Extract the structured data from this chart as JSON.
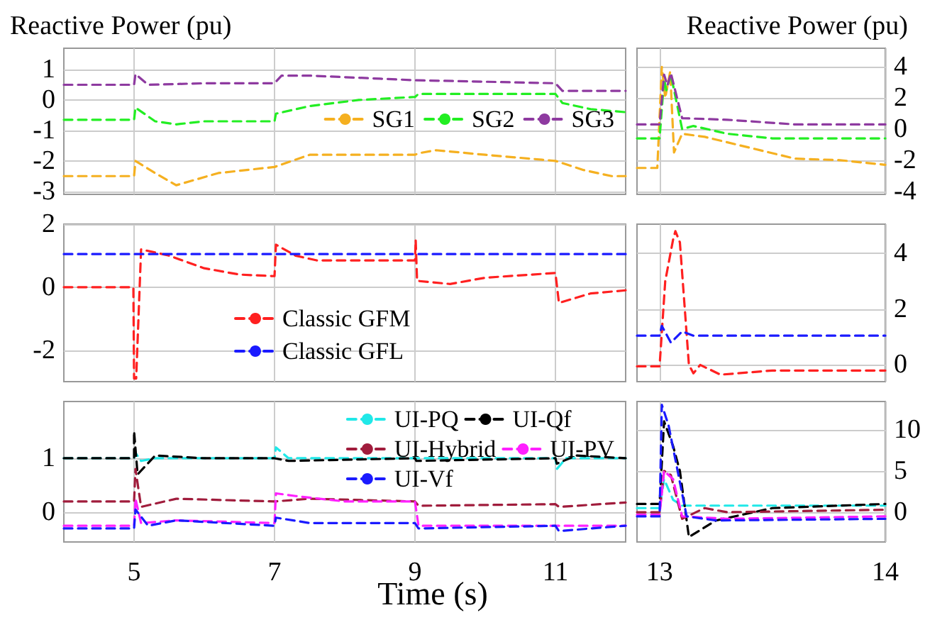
{
  "chart_data": [
    {
      "type": "line",
      "ylabel": "Reactive Power (pu)",
      "xlim": [
        4,
        12
      ],
      "xticks": [
        5,
        7,
        9,
        11
      ],
      "ylim": [
        -3.1,
        1.7
      ],
      "yticks": [
        -3,
        -2,
        -1,
        0,
        1
      ],
      "grid": true,
      "legend": "right",
      "line_style": "dashed",
      "marker": "none",
      "tick_labels": "y",
      "series": [
        {
          "name": "SG1",
          "color": "#f5b020",
          "x": [
            4,
            5,
            5.02,
            5.3,
            5.6,
            6.2,
            7,
            7.5,
            9,
            9.05,
            9.3,
            10,
            11,
            11.4,
            11.8,
            12
          ],
          "values": [
            -2.5,
            -2.5,
            -2.0,
            -2.4,
            -2.8,
            -2.4,
            -2.2,
            -1.8,
            -1.8,
            -1.75,
            -1.65,
            -1.8,
            -2.0,
            -2.3,
            -2.5,
            -2.5
          ]
        },
        {
          "name": "SG2",
          "color": "#22ee22",
          "x": [
            4,
            5,
            5.02,
            5.3,
            5.6,
            6,
            7,
            7.02,
            7.5,
            8.2,
            9,
            9.05,
            10,
            11,
            11.1,
            11.5,
            12
          ],
          "values": [
            -0.65,
            -0.65,
            -0.25,
            -0.7,
            -0.8,
            -0.7,
            -0.7,
            -0.45,
            -0.2,
            0,
            0.1,
            0.2,
            0.2,
            0.2,
            -0.1,
            -0.3,
            -0.4
          ]
        },
        {
          "name": "SG3",
          "color": "#8e3aa0",
          "x": [
            4,
            5,
            5.02,
            5.2,
            6,
            7,
            7.1,
            7.5,
            8.5,
            9,
            10,
            11,
            11.1,
            12
          ],
          "values": [
            0.5,
            0.5,
            0.85,
            0.5,
            0.55,
            0.55,
            0.8,
            0.8,
            0.7,
            0.65,
            0.6,
            0.55,
            0.3,
            0.3
          ]
        }
      ]
    },
    {
      "type": "line",
      "ylabel": "Reactive Power (pu)",
      "xlim": [
        12.9,
        14
      ],
      "xticks": [
        13,
        14
      ],
      "ylim": [
        -4.2,
        5.2
      ],
      "yticks": [
        -4,
        -2,
        0,
        2,
        4
      ],
      "grid": true,
      "line_style": "dashed",
      "marker": "none",
      "tick_labels": "y",
      "series": [
        {
          "color": "#f5b020",
          "x": [
            12.9,
            12.99,
            13.01,
            13.025,
            13.047,
            13.064,
            13.1,
            13.2,
            13.4,
            13.6,
            13.8,
            14
          ],
          "values": [
            -2.5,
            -2.5,
            4,
            2,
            3.7,
            -1.5,
            -0.3,
            -0.5,
            -1.2,
            -1.9,
            -2.0,
            -2.3
          ]
        },
        {
          "color": "#22ee22",
          "x": [
            12.9,
            13,
            13.02,
            13.03,
            13.05,
            13.1,
            13.15,
            13.3,
            13.5,
            14
          ],
          "values": [
            -0.6,
            -0.6,
            3.2,
            2.5,
            3.5,
            0,
            0.2,
            -0.3,
            -0.6,
            -0.6
          ]
        },
        {
          "color": "#8e3aa0",
          "x": [
            12.9,
            13,
            13.02,
            13.035,
            13.05,
            13.1,
            13.3,
            13.6,
            14
          ],
          "values": [
            0.3,
            0.3,
            3.5,
            2.8,
            3.6,
            0.7,
            0.6,
            0.3,
            0.3
          ]
        }
      ]
    },
    {
      "type": "line",
      "xlim": [
        4,
        12
      ],
      "xticks": [
        5,
        7,
        9,
        11
      ],
      "ylim": [
        -3,
        2
      ],
      "yticks": [
        -2,
        0,
        2
      ],
      "grid": true,
      "legend": "bottom",
      "line_style": "dashed",
      "marker": "none",
      "tick_labels": "y",
      "series": [
        {
          "name": "Classic GFM",
          "color": "#ff2020",
          "x": [
            4,
            4.99,
            5.0,
            5.03,
            5.1,
            5.5,
            6,
            6.5,
            7,
            7.02,
            7.3,
            7.6,
            9,
            9.01,
            9.03,
            9.5,
            10,
            11,
            11.05,
            11.5,
            12
          ],
          "values": [
            0,
            0,
            -2.9,
            -2.9,
            1.2,
            1.0,
            0.6,
            0.4,
            0.35,
            1.35,
            1.0,
            0.85,
            0.85,
            1.5,
            0.2,
            0.1,
            0.3,
            0.45,
            -0.5,
            -0.2,
            -0.1
          ]
        },
        {
          "name": "Classic GFL",
          "color": "#1a1aff",
          "x": [
            4,
            12
          ],
          "values": [
            1.05,
            1.05
          ]
        }
      ]
    },
    {
      "type": "line",
      "xlim": [
        12.9,
        14
      ],
      "xticks": [
        13,
        14
      ],
      "ylim": [
        -0.6,
        5.05
      ],
      "yticks": [
        0,
        2,
        4
      ],
      "grid": true,
      "line_style": "dashed",
      "marker": "none",
      "tick_labels": "y",
      "series": [
        {
          "color": "#ff2020",
          "x": [
            12.9,
            13,
            13.025,
            13.06,
            13.07,
            13.09,
            13.13,
            13.15,
            13.18,
            13.27,
            13.5,
            14
          ],
          "values": [
            -0.05,
            -0.05,
            3,
            4.5,
            4.8,
            4.4,
            0,
            -0.3,
            0,
            -0.35,
            -0.2,
            -0.2
          ]
        },
        {
          "color": "#1a1aff",
          "x": [
            12.9,
            13,
            13.01,
            13.05,
            13.1,
            13.15,
            14
          ],
          "values": [
            1.05,
            1.05,
            1.4,
            0.8,
            1.2,
            1.05,
            1.05
          ]
        }
      ]
    },
    {
      "type": "line",
      "xlabel": "Time (s)",
      "xlim": [
        4,
        12
      ],
      "xticks": [
        5,
        7,
        9,
        11
      ],
      "ylim": [
        -0.55,
        2.05
      ],
      "yticks": [
        0,
        1
      ],
      "grid": true,
      "legend": "top right",
      "line_style": "dashed",
      "marker": "none",
      "series": [
        {
          "name": "UI-PQ",
          "color": "#20e8e8",
          "x": [
            4,
            5,
            5.02,
            5.1,
            5.3,
            7,
            7.02,
            7.2,
            11,
            11.02,
            11.15,
            12
          ],
          "values": [
            1,
            1,
            1.1,
            0.95,
            1.0,
            1,
            1.2,
            1,
            1,
            0.8,
            1,
            1
          ]
        },
        {
          "name": "UI-Qf",
          "color": "#000000",
          "x": [
            4,
            5,
            5.0,
            5.05,
            5.3,
            6,
            7,
            7.2,
            9,
            9.02,
            11,
            11.02,
            11.3,
            12
          ],
          "values": [
            1,
            1,
            1.5,
            0.7,
            1.05,
            1.0,
            1,
            0.95,
            1,
            0.95,
            1.0,
            0.9,
            1.05,
            1.0
          ]
        },
        {
          "name": "UI-Hybrid",
          "color": "#a01c3c",
          "x": [
            4,
            5,
            5.02,
            5.1,
            5.6,
            7,
            7.5,
            9,
            9.05,
            11,
            11.05,
            12
          ],
          "values": [
            0.2,
            0.2,
            0.8,
            0.1,
            0.25,
            0.2,
            0.25,
            0.2,
            0.12,
            0.15,
            0.1,
            0.18
          ]
        },
        {
          "name": "UI-PV",
          "color": "#ff20ff",
          "x": [
            4,
            5,
            5.02,
            5.1,
            5.6,
            7,
            7.02,
            7.3,
            8,
            9,
            9.05,
            12
          ],
          "values": [
            -0.25,
            -0.25,
            0.25,
            -0.2,
            -0.15,
            -0.2,
            0.35,
            0.3,
            0.2,
            0.2,
            -0.25,
            -0.25
          ]
        },
        {
          "name": "UI-Vf",
          "color": "#1a1aff",
          "x": [
            4,
            5,
            5.02,
            5.2,
            5.6,
            7,
            7.02,
            7.5,
            9,
            9.05,
            11,
            11.05,
            11.5,
            12
          ],
          "values": [
            -0.3,
            -0.3,
            0.05,
            -0.25,
            -0.15,
            -0.25,
            -0.1,
            -0.2,
            -0.2,
            -0.3,
            -0.25,
            -0.35,
            -0.3,
            -0.25
          ]
        }
      ]
    },
    {
      "type": "line",
      "xlim": [
        12.9,
        14
      ],
      "xticks": [
        13,
        14
      ],
      "ylim": [
        -3.6,
        13.4
      ],
      "yticks": [
        0,
        5,
        10
      ],
      "grid": true,
      "line_style": "dashed",
      "marker": "none",
      "series": [
        {
          "color": "#20e8e8",
          "x": [
            12.9,
            13,
            13.02,
            13.06,
            13.1,
            14
          ],
          "values": [
            0.5,
            0.5,
            4,
            1.5,
            0.8,
            0.8
          ]
        },
        {
          "color": "#000000",
          "x": [
            12.9,
            13,
            13.02,
            13.06,
            13.09,
            13.13,
            13.25,
            13.5,
            14
          ],
          "values": [
            1,
            1,
            11,
            8,
            5,
            -3,
            -1,
            0.5,
            1
          ]
        },
        {
          "color": "#a01c3c",
          "x": [
            12.9,
            13,
            13.02,
            13.05,
            13.1,
            13.2,
            13.3,
            14
          ],
          "values": [
            0,
            0,
            5,
            4.5,
            -0.8,
            0.5,
            0,
            0.3
          ]
        },
        {
          "color": "#ff20ff",
          "x": [
            12.9,
            13,
            13.02,
            13.06,
            13.1,
            13.3,
            14
          ],
          "values": [
            -0.3,
            -0.3,
            5,
            4,
            -0.5,
            -0.8,
            -0.5
          ]
        },
        {
          "color": "#1a1aff",
          "x": [
            12.9,
            13,
            13.01,
            13.04,
            13.08,
            13.12,
            13.25,
            14
          ],
          "values": [
            -0.5,
            -0.5,
            13,
            10.5,
            5,
            -0.5,
            -1,
            -0.8
          ]
        }
      ]
    }
  ]
}
